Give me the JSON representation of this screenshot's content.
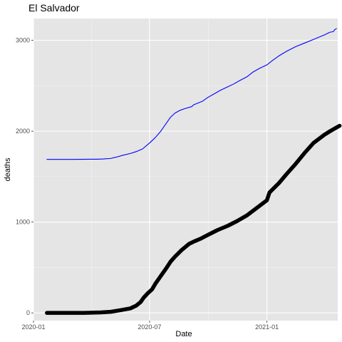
{
  "chart_data": {
    "type": "line",
    "title": "El Salvador",
    "xlabel": "Date",
    "ylabel": "deaths",
    "x_range": [
      "2020-01-01",
      "2021-04-22"
    ],
    "ylim": [
      -85,
      3240
    ],
    "x_ticks": [
      {
        "date": "2020-01-01",
        "label": "2020-01"
      },
      {
        "date": "2020-07-01",
        "label": "2020-07"
      },
      {
        "date": "2021-01-01",
        "label": "2021-01"
      }
    ],
    "y_ticks": [
      {
        "value": 0,
        "label": "0"
      },
      {
        "value": 1000,
        "label": "1000"
      },
      {
        "value": 2000,
        "label": "2000"
      },
      {
        "value": 3000,
        "label": "3000"
      }
    ],
    "grid": true,
    "background": "#e5e5e5",
    "series": [
      {
        "style": "thin",
        "color": "#0000ff",
        "points": [
          [
            "2020-01-22",
            1690
          ],
          [
            "2020-03-01",
            1690
          ],
          [
            "2020-04-10",
            1692
          ],
          [
            "2020-04-20",
            1695
          ],
          [
            "2020-05-01",
            1700
          ],
          [
            "2020-05-10",
            1715
          ],
          [
            "2020-05-20",
            1735
          ],
          [
            "2020-06-01",
            1755
          ],
          [
            "2020-06-10",
            1775
          ],
          [
            "2020-06-20",
            1805
          ],
          [
            "2020-07-01",
            1870
          ],
          [
            "2020-07-10",
            1930
          ],
          [
            "2020-07-18",
            1995
          ],
          [
            "2020-07-26",
            2075
          ],
          [
            "2020-08-03",
            2155
          ],
          [
            "2020-08-10",
            2200
          ],
          [
            "2020-08-18",
            2230
          ],
          [
            "2020-08-26",
            2250
          ],
          [
            "2020-09-05",
            2270
          ],
          [
            "2020-09-08",
            2290
          ],
          [
            "2020-09-15",
            2310
          ],
          [
            "2020-09-22",
            2330
          ],
          [
            "2020-09-30",
            2370
          ],
          [
            "2020-10-10",
            2410
          ],
          [
            "2020-10-20",
            2450
          ],
          [
            "2020-11-01",
            2490
          ],
          [
            "2020-11-10",
            2520
          ],
          [
            "2020-11-20",
            2560
          ],
          [
            "2020-12-01",
            2600
          ],
          [
            "2020-12-10",
            2650
          ],
          [
            "2020-12-20",
            2690
          ],
          [
            "2021-01-01",
            2730
          ],
          [
            "2021-01-10",
            2780
          ],
          [
            "2021-01-20",
            2830
          ],
          [
            "2021-02-01",
            2880
          ],
          [
            "2021-02-15",
            2930
          ],
          [
            "2021-03-01",
            2970
          ],
          [
            "2021-03-15",
            3010
          ],
          [
            "2021-04-01",
            3060
          ],
          [
            "2021-04-10",
            3090
          ],
          [
            "2021-04-15",
            3095
          ],
          [
            "2021-04-17",
            3115
          ],
          [
            "2021-04-20",
            3130
          ]
        ]
      },
      {
        "style": "thick",
        "color": "#000000",
        "points": [
          [
            "2020-01-22",
            0
          ],
          [
            "2020-03-20",
            0
          ],
          [
            "2020-04-15",
            5
          ],
          [
            "2020-05-01",
            12
          ],
          [
            "2020-05-15",
            28
          ],
          [
            "2020-06-01",
            50
          ],
          [
            "2020-06-10",
            80
          ],
          [
            "2020-06-17",
            120
          ],
          [
            "2020-06-22",
            170
          ],
          [
            "2020-06-28",
            215
          ],
          [
            "2020-07-05",
            260
          ],
          [
            "2020-07-10",
            320
          ],
          [
            "2020-07-20",
            420
          ],
          [
            "2020-07-28",
            500
          ],
          [
            "2020-08-03",
            565
          ],
          [
            "2020-08-10",
            620
          ],
          [
            "2020-08-20",
            690
          ],
          [
            "2020-09-01",
            760
          ],
          [
            "2020-09-10",
            790
          ],
          [
            "2020-09-20",
            820
          ],
          [
            "2020-10-01",
            860
          ],
          [
            "2020-10-15",
            910
          ],
          [
            "2020-11-01",
            960
          ],
          [
            "2020-11-15",
            1010
          ],
          [
            "2020-12-01",
            1075
          ],
          [
            "2020-12-15",
            1150
          ],
          [
            "2021-01-01",
            1240
          ],
          [
            "2021-01-05",
            1325
          ],
          [
            "2021-01-20",
            1430
          ],
          [
            "2021-02-01",
            1530
          ],
          [
            "2021-02-15",
            1640
          ],
          [
            "2021-03-01",
            1760
          ],
          [
            "2021-03-15",
            1870
          ],
          [
            "2021-04-01",
            1960
          ],
          [
            "2021-04-10",
            2000
          ],
          [
            "2021-04-20",
            2040
          ],
          [
            "2021-04-25",
            2060
          ]
        ]
      }
    ]
  }
}
